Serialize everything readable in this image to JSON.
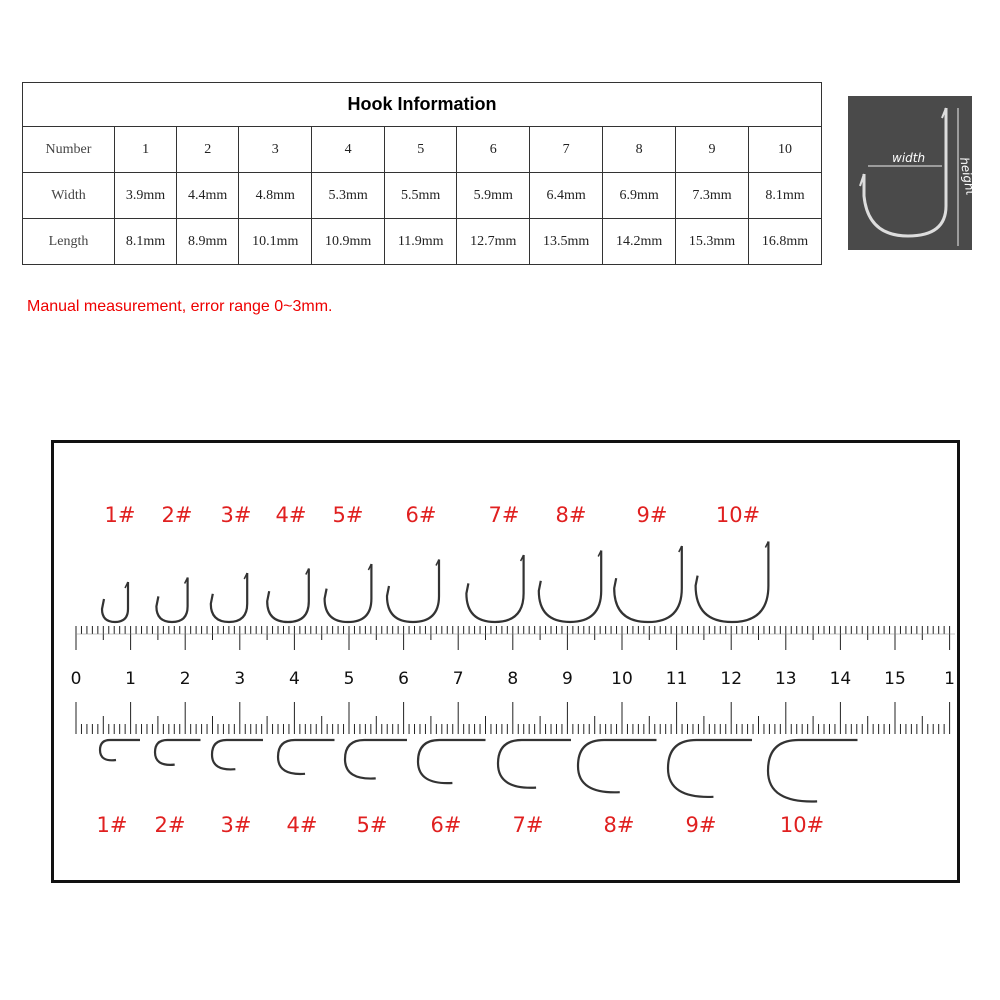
{
  "table": {
    "title": "Hook Information",
    "rows": [
      {
        "label": "Number",
        "values": [
          "1",
          "2",
          "3",
          "4",
          "5",
          "6",
          "7",
          "8",
          "9",
          "10"
        ]
      },
      {
        "label": "Width",
        "values": [
          "3.9mm",
          "4.4mm",
          "4.8mm",
          "5.3mm",
          "5.5mm",
          "5.9mm",
          "6.4mm",
          "6.9mm",
          "7.3mm",
          "8.1mm"
        ]
      },
      {
        "label": "Length",
        "values": [
          "8.1mm",
          "8.9mm",
          "10.1mm",
          "10.9mm",
          "11.9mm",
          "12.7mm",
          "13.5mm",
          "14.2mm",
          "15.3mm",
          "16.8mm"
        ]
      }
    ]
  },
  "note": "Manual measurement, error range 0~3mm.",
  "diagram": {
    "width_label": "width",
    "height_label": "height"
  },
  "ruler": {
    "labels": [
      "0",
      "1",
      "2",
      "3",
      "4",
      "5",
      "6",
      "7",
      "8",
      "9",
      "10",
      "11",
      "12",
      "13",
      "14",
      "15",
      "1"
    ]
  },
  "top_hooks": [
    "1#",
    "2#",
    "3#",
    "4#",
    "5#",
    "6#",
    "7#",
    "8#",
    "9#",
    "10#"
  ],
  "bottom_hooks": [
    "1#",
    "2#",
    "3#",
    "4#",
    "5#",
    "6#",
    "7#",
    "8#",
    "9#",
    "10#"
  ],
  "colors": {
    "label_red": "#e02020",
    "note_red": "#e00000",
    "diagram_bg": "#4a4a4a"
  }
}
